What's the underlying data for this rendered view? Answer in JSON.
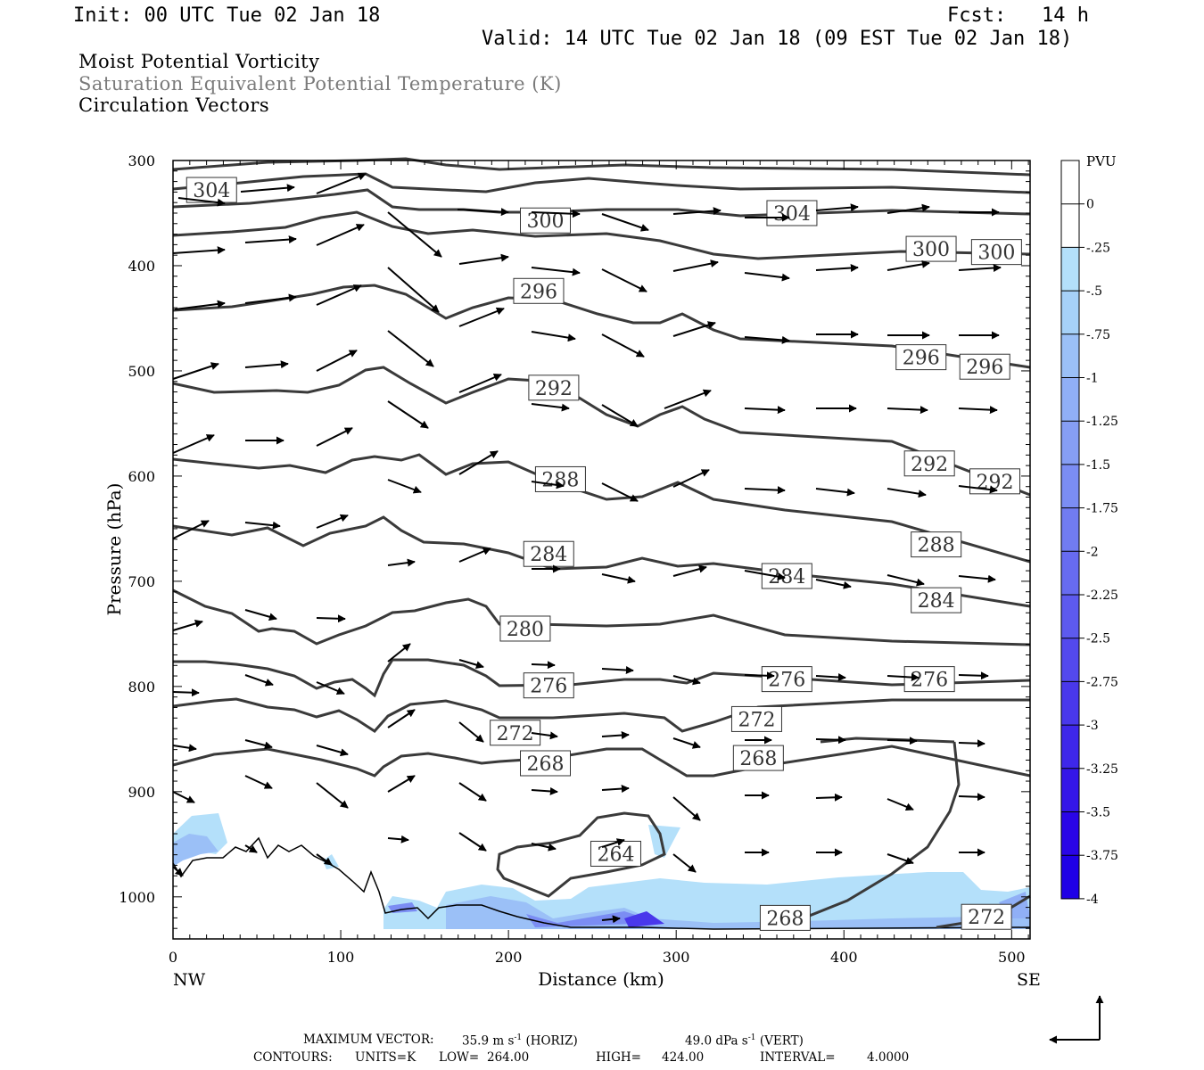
{
  "header": {
    "init": "Init: 00 UTC Tue 02 Jan 18",
    "fcst_label": "Fcst:",
    "fcst_value": "14 h",
    "valid": "Valid: 14 UTC Tue 02 Jan 18 (09 EST Tue 02 Jan 18)"
  },
  "fields": {
    "field1": "Moist Potential Vorticity",
    "field2": "Saturation Equivalent Potential Temperature (K)",
    "field3": "Circulation Vectors"
  },
  "colors": {
    "field2_text": "#7a7a7a",
    "contour": "#3a3a3a",
    "pv_fill": [
      "#ffffff",
      "#ffffff",
      "#b4e0fa",
      "#a6d1f8",
      "#9bc0f7",
      "#90aff6",
      "#869ef4",
      "#7b8df3",
      "#717cf1",
      "#676bf0",
      "#5d5aee",
      "#5349ed",
      "#4938eb",
      "#3e27ea",
      "#3416e8",
      "#2a05e7",
      "#1f00e6"
    ]
  },
  "chart_data": {
    "type": "cross-section",
    "xlabel": "Distance (km)",
    "ylabel": "Pressure (hPa)",
    "xlim": [
      0,
      511
    ],
    "ylim": [
      1040,
      300
    ],
    "x_ticks": [
      0,
      100,
      200,
      300,
      400,
      500
    ],
    "y_ticks": [
      300,
      400,
      500,
      600,
      700,
      800,
      900,
      1000
    ],
    "x_end_labels": {
      "left": "NW",
      "right": "SE"
    },
    "colorbar": {
      "unit": "PVU",
      "labels": [
        "0",
        "-.25",
        "-.5",
        "-.75",
        "-1",
        "-1.25",
        "-1.5",
        "-1.75",
        "-2",
        "-2.25",
        "-2.5",
        "-2.75",
        "-3",
        "-3.25",
        "-3.5",
        "-3.75",
        "-4"
      ]
    },
    "contour_labels": [
      {
        "text": "304",
        "x": 23,
        "p": 328
      },
      {
        "text": "300",
        "x": 222,
        "p": 357
      },
      {
        "text": "304",
        "x": 369,
        "p": 350
      },
      {
        "text": "300",
        "x": 452,
        "p": 384
      },
      {
        "text": "300",
        "x": 491,
        "p": 387
      },
      {
        "text": "296",
        "x": 218,
        "p": 424
      },
      {
        "text": "296",
        "x": 446,
        "p": 487
      },
      {
        "text": "296",
        "x": 484,
        "p": 496
      },
      {
        "text": "292",
        "x": 227,
        "p": 516
      },
      {
        "text": "292",
        "x": 451,
        "p": 588
      },
      {
        "text": "292",
        "x": 490,
        "p": 605
      },
      {
        "text": "288",
        "x": 231,
        "p": 603
      },
      {
        "text": "288",
        "x": 455,
        "p": 665
      },
      {
        "text": "284",
        "x": 224,
        "p": 674
      },
      {
        "text": "284",
        "x": 366,
        "p": 695
      },
      {
        "text": "284",
        "x": 455,
        "p": 718
      },
      {
        "text": "280",
        "x": 210,
        "p": 745
      },
      {
        "text": "276",
        "x": 224,
        "p": 799
      },
      {
        "text": "276",
        "x": 366,
        "p": 793
      },
      {
        "text": "276",
        "x": 451,
        "p": 793
      },
      {
        "text": "272",
        "x": 204,
        "p": 844
      },
      {
        "text": "272",
        "x": 348,
        "p": 831
      },
      {
        "text": "268",
        "x": 222,
        "p": 873
      },
      {
        "text": "268",
        "x": 349,
        "p": 868
      },
      {
        "text": "264",
        "x": 264,
        "p": 959
      },
      {
        "text": "268",
        "x": 365,
        "p": 1020
      },
      {
        "text": "272",
        "x": 485,
        "p": 1019
      }
    ],
    "footer_max_vector": {
      "label": "MAXIMUM VECTOR:",
      "horiz_value": "35.9 m s",
      "horiz_unit": "(HORIZ)",
      "vert_value": "49.0 dPa s",
      "vert_unit": "(VERT)",
      "exponent": "-1"
    },
    "footer_contours": {
      "label": "CONTOURS:",
      "units": "UNITS=K",
      "low_label": "LOW=",
      "low": "264.00",
      "high_label": "HIGH=",
      "high": "424.00",
      "interval_label": "INTERVAL=",
      "interval": "4.0000"
    }
  }
}
